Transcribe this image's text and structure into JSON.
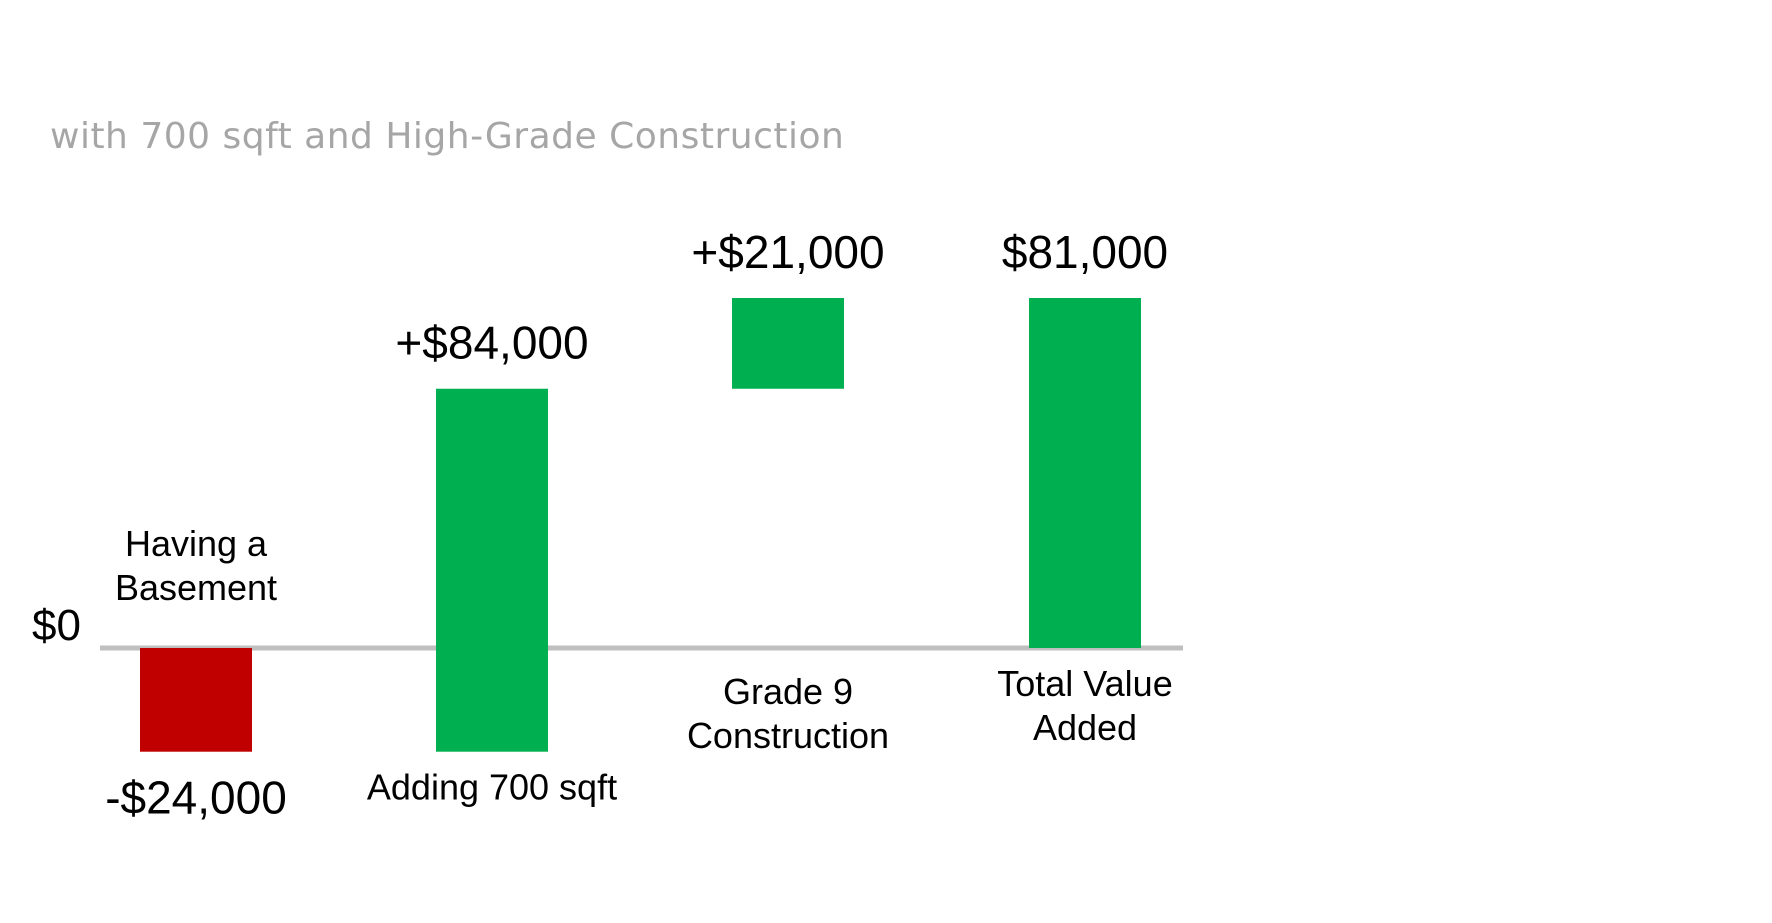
{
  "subtitle": "with 700 sqft and High-Grade Construction",
  "colors": {
    "positive": "#00b050",
    "negative": "#c00000",
    "baseline": "#bfbfbf",
    "text": "#000000",
    "subtitle": "#a6a6a6"
  },
  "chart_data": {
    "type": "bar",
    "subtype": "waterfall",
    "title": "",
    "subtitle": "with 700 sqft and High-Grade Construction",
    "categories": [
      "Having a Basement",
      "Adding 700 sqft",
      "Grade 9 Construction",
      "Total Value Added"
    ],
    "category_labels": [
      [
        "Having a",
        "Basement"
      ],
      [
        "Adding 700 sqft"
      ],
      [
        "Grade 9",
        "Construction"
      ],
      [
        "Total Value",
        "Added"
      ]
    ],
    "values": [
      -24000,
      84000,
      21000,
      81000
    ],
    "bars": [
      {
        "start": 0,
        "end": -24000
      },
      {
        "start": -24000,
        "end": 60000
      },
      {
        "start": 60000,
        "end": 81000
      },
      {
        "start": 0,
        "end": 81000
      }
    ],
    "data_labels": [
      "-$24,000",
      "+$84,000",
      "+$21,000",
      "$81,000"
    ],
    "is_total": [
      false,
      false,
      false,
      true
    ],
    "baseline_label": "$0",
    "ylim": [
      -24000,
      81000
    ],
    "grid": false,
    "legend": "none"
  }
}
